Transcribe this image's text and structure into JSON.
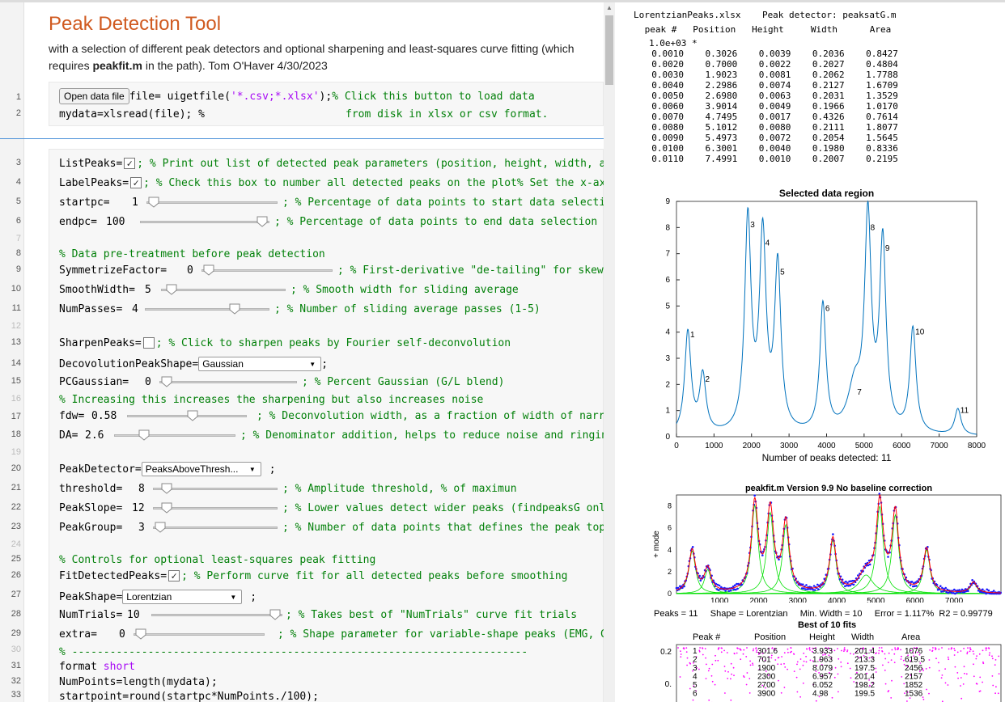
{
  "live_script": {
    "title": "Peak Detection Tool",
    "description_a": "with a selection of different peak detectors and optional sharpening and least-squares curve fitting (which",
    "description_b_pre": "requires ",
    "description_b_bold": "peakfit.m",
    "description_b_post": " in the path). Tom O'Haver 4/30/2023",
    "open_button_label": "Open data file",
    "code1_a": "file= uigetfile(",
    "code1_str": "'*.csv;*.xlsx'",
    "code1_b": ");",
    "code1_cmt": "% Click this button to load data",
    "code2_a": "mydata=xlsread(file); %",
    "code2_cmt": "from disk in xlsx or csv format.",
    "line_numbers": [
      "1",
      "2",
      "3",
      "4",
      "5",
      "6",
      "7",
      "8",
      "9",
      "10",
      "11",
      "12",
      "13",
      "14",
      "15",
      "16",
      "17",
      "18",
      "19",
      "20",
      "21",
      "22",
      "23",
      "24",
      "25",
      "26",
      "27",
      "28",
      "29",
      "30",
      "31",
      "32",
      "33"
    ],
    "controls": {
      "listpeaks": {
        "label": "ListPeaks=",
        "checked": "✓",
        "comment": "; % Print out list of detected peak parameters (position, height, width, ar"
      },
      "labelpeaks": {
        "label": "LabelPeaks=",
        "checked": "✓",
        "comment": "; % Check this box to number all detected peaks on the plot% Set the x-ax:"
      },
      "startpc": {
        "label": "startpc=",
        "value": "1",
        "comment": "; % Percentage of data points to start data selectior"
      },
      "endpc": {
        "label": "endpc=",
        "value": "100",
        "comment": "; % Percentage of data points to end data selection"
      },
      "pretreat_comment": "% Data pre-treatment before peak detection",
      "symmetrize": {
        "label": "SymmetrizeFactor=",
        "value": "0",
        "comment": "; % First-derivative \"de-tailing\" for skewe("
      },
      "smoothwidth": {
        "label": "SmoothWidth=",
        "value": "5",
        "comment": "; % Smooth width for sliding average"
      },
      "numpasses": {
        "label": "NumPasses=",
        "value": "4",
        "comment": "; % Number of sliding average passes (1-5)"
      },
      "sharpenpeaks": {
        "label": "SharpenPeaks=",
        "checked": "",
        "comment": "; % Click to sharpen peaks by Fourier self-deconvolution"
      },
      "deconvshape": {
        "label": "DecovolutionPeakShape=",
        "value": "Gaussian",
        "suffix": ";"
      },
      "pcgaussian": {
        "label": "PCGaussian=",
        "value": "0",
        "comment": "; % Percent Gaussian (G/L blend)"
      },
      "increasing_comment": "% Increasing this increases the sharpening but also increases noise",
      "fdw": {
        "label": "fdw=",
        "value": "0.58",
        "comment": "; % Deconvolution width, as a fraction of width of narr("
      },
      "da": {
        "label": "DA=",
        "value": "2.6",
        "comment": "; % Denominator addition, helps to reduce noise and ringing"
      },
      "peakdetector": {
        "label": "PeakDetector=",
        "value": "PeaksAboveThresh...",
        "suffix": ";"
      },
      "threshold": {
        "label": "threshold=",
        "value": "8",
        "comment": "; % Amplitude threshold, % of maximun"
      },
      "peakslope": {
        "label": "PeakSlope=",
        "value": "12",
        "comment": "; % Lower values detect wider peaks (findpeaksG only"
      },
      "peakgroup": {
        "label": "PeakGroup=",
        "value": "3",
        "comment": "; % Number of data points that defines the peak top"
      },
      "fitting_comment": "% Controls for optional least-squares peak fitting",
      "fitdetected": {
        "label": "FitDetectedPeaks=",
        "checked": "✓",
        "comment": "; % Perform curve fit for all detected peaks before smoothing"
      },
      "peakshape": {
        "label": "PeakShape=",
        "value": "Lorentzian",
        "suffix": ";"
      },
      "numtrials": {
        "label": "NumTrials=",
        "value": "10",
        "comment": "; % Takes best of \"NumTrials\" curve fit trials"
      },
      "extra": {
        "label": "extra=",
        "value": "0",
        "comment": "; % Shape parameter for variable-shape peaks (EMG, G/L"
      },
      "dash_comment": "% ------------------------------------------------------------------------",
      "format_kw": "format",
      "format_arg": "short",
      "numpoints_line": "NumPoints=length(mydata);",
      "startpoint_line": "startpoint=round(startpc*NumPoints./100);"
    }
  },
  "output": {
    "header": "LorentzianPeaks.xlsx    Peak detector: peaksatG.m",
    "table_header": " peak #   Position   Height     Width      Area",
    "scale_line": "1.0e+03 *",
    "rows": [
      "  0.0010    0.3026    0.0039    0.2036    0.8427",
      "  0.0020    0.7000    0.0022    0.2027    0.4804",
      "  0.0030    1.9023    0.0081    0.2062    1.7788",
      "  0.0040    2.2986    0.0074    0.2127    1.6709",
      "  0.0050    2.6980    0.0063    0.2031    1.3529",
      "  0.0060    3.9014    0.0049    0.1966    1.0170",
      "  0.0070    4.7495    0.0017    0.4326    0.7614",
      "  0.0080    5.1012    0.0080    0.2111    1.8077",
      "  0.0090    5.4973    0.0072    0.2054    1.5645",
      "  0.0100    6.3001    0.0040    0.1980    0.8336",
      "  0.0110    7.4991    0.0010    0.2007    0.2195"
    ]
  },
  "chart_data": [
    {
      "type": "line",
      "title": "Selected data region",
      "xlabel": "Number of peaks detected: 11",
      "ylabel": "",
      "xlim": [
        0,
        8000
      ],
      "ylim": [
        0,
        9
      ],
      "xticks": [
        0,
        1000,
        2000,
        3000,
        4000,
        5000,
        6000,
        7000,
        8000
      ],
      "yticks": [
        0,
        1,
        2,
        3,
        4,
        5,
        6,
        7,
        8,
        9
      ],
      "color": "#0072bd",
      "peaks": [
        {
          "label": "1",
          "x": 302.6,
          "height": 3.9,
          "width": 203.6
        },
        {
          "label": "2",
          "x": 700.0,
          "height": 2.2,
          "width": 202.7
        },
        {
          "label": "3",
          "x": 1902.3,
          "height": 8.1,
          "width": 206.2
        },
        {
          "label": "4",
          "x": 2298.6,
          "height": 7.4,
          "width": 212.7
        },
        {
          "label": "5",
          "x": 2698.0,
          "height": 6.3,
          "width": 203.1
        },
        {
          "label": "6",
          "x": 3901.4,
          "height": 4.9,
          "width": 196.6
        },
        {
          "label": "7",
          "x": 4749.5,
          "height": 1.7,
          "width": 432.6
        },
        {
          "label": "8",
          "x": 5101.2,
          "height": 8.0,
          "width": 211.1
        },
        {
          "label": "9",
          "x": 5497.3,
          "height": 7.2,
          "width": 205.4
        },
        {
          "label": "10",
          "x": 6300.1,
          "height": 4.0,
          "width": 198.0
        },
        {
          "label": "11",
          "x": 7499.1,
          "height": 1.0,
          "width": 200.7
        }
      ]
    },
    {
      "type": "line",
      "title": "peakfit.m Version 9.9   No baseline correction",
      "ylabel": "+ mode",
      "xlim": [
        -100,
        8200
      ],
      "ylim": [
        0,
        9
      ],
      "xticks": [
        1000,
        2000,
        3000,
        4000,
        5000,
        6000,
        7000
      ],
      "yticks": [
        0,
        2,
        4,
        6,
        8
      ],
      "series": [
        {
          "name": "data",
          "color": "#1a1aff"
        },
        {
          "name": "model",
          "color": "#ff0000"
        },
        {
          "name": "components",
          "color": "#00e000"
        }
      ]
    },
    {
      "type": "scatter",
      "ylim_label": "0.2",
      "ylabel_tick2": "0.",
      "color": "#ff00ff"
    }
  ],
  "fit_info": {
    "stats_line": "Peaks = 11     Shape = Lorentzian     Min. Width = 10     Error = 1.117%  R2 = 0.99779",
    "best_line": "Best of 10 fits",
    "columns": [
      "Peak #",
      "Position",
      "Height",
      "Width",
      "Area"
    ],
    "rows": [
      [
        "1",
        "301.6",
        "3.933",
        "201.4",
        "1076"
      ],
      [
        "2",
        "701",
        "1.963",
        "213.3",
        "619.5"
      ],
      [
        "3",
        "1900",
        "8.079",
        "197.5",
        "2456"
      ],
      [
        "4",
        "2300",
        "6.957",
        "201.4",
        "2157"
      ],
      [
        "5",
        "2700",
        "6.052",
        "198.2",
        "1852"
      ],
      [
        "6",
        "3900",
        "4.98",
        "199.5",
        "1536"
      ]
    ]
  }
}
